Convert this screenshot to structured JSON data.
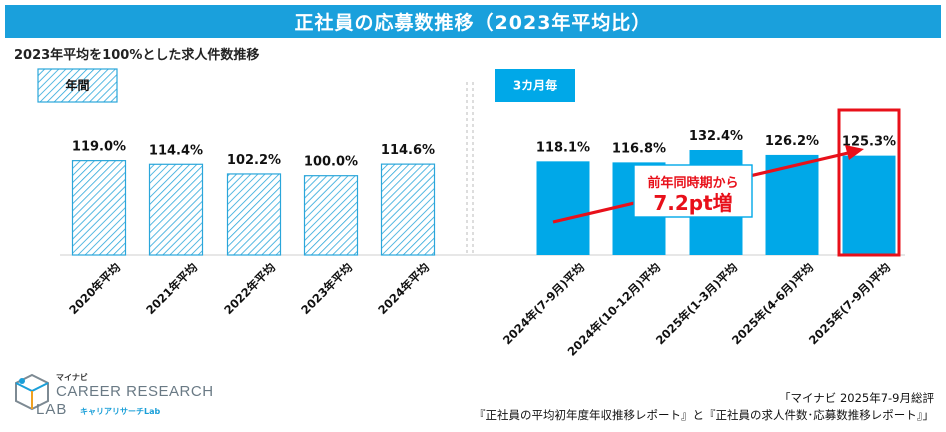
{
  "title": "正社員の応募数推移（2023年平均比）",
  "subtitle": "2023年平均を100%とした求人件数推移",
  "colors": {
    "title_bg": "#1aa0dc",
    "bar_solid": "#00a8e8",
    "bar_hatch_stroke": "#2aa6da",
    "highlight_box": "#e8101a",
    "arrow": "#e8101a",
    "callout_border": "#00a8e8",
    "callout_text": "#e8101a"
  },
  "chart_data": {
    "type": "bar",
    "unit": "%",
    "groups": [
      {
        "label": "年間",
        "style": "hatched",
        "categories": [
          "2020年平均",
          "2021年平均",
          "2022年平均",
          "2023年平均",
          "2024年平均"
        ],
        "values": [
          119.0,
          114.4,
          102.2,
          100.0,
          114.6
        ],
        "value_labels": [
          "119.0%",
          "114.4%",
          "102.2%",
          "100.0%",
          "114.6%"
        ]
      },
      {
        "label": "3カ月毎",
        "style": "solid",
        "categories": [
          "2024年(7-9月)平均",
          "2024年(10-12月)平均",
          "2025年(1-3月)平均",
          "2025年(4-6月)平均",
          "2025年(7-9月)平均"
        ],
        "values": [
          118.1,
          116.8,
          132.4,
          126.2,
          125.3
        ],
        "value_labels": [
          "118.1%",
          "116.8%",
          "132.4%",
          "126.2%",
          "125.3%"
        ]
      }
    ],
    "highlighted_category": "2025年(7-9月)平均",
    "annotation": {
      "line1": "前年同時期から",
      "line2": "7.2pt増"
    }
  },
  "logo": {
    "brand": "マイナビ",
    "line1": "CAREER RESEARCH",
    "line2": "LAB",
    "sub": "キャリアリサーチLab"
  },
  "source": {
    "line1": "「マイナビ 2025年7-9月総評",
    "line2": "『正社員の平均初年度年収推移レポート』と『正社員の求人件数･応募数推移レポート』」"
  }
}
